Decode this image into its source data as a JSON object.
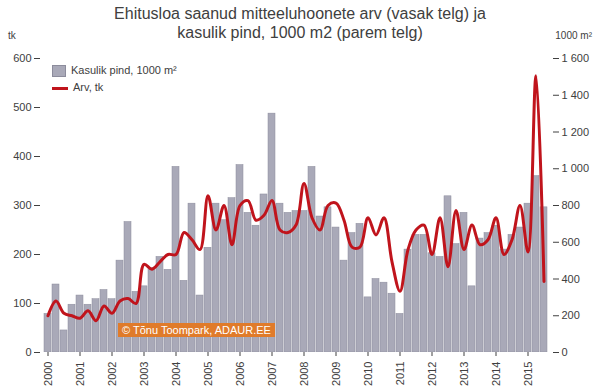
{
  "chart_data": {
    "type": "bar",
    "title": "Ehitusloa saanud mitteeluhoonete arv (vasak telg) ja kasulik pind, 1000 m2 (parem telg)",
    "categories": [
      "2000",
      null,
      null,
      null,
      "2001",
      null,
      null,
      null,
      "2002",
      null,
      null,
      null,
      "2003",
      null,
      null,
      null,
      "2004",
      null,
      null,
      null,
      "2005",
      null,
      null,
      null,
      "2006",
      null,
      null,
      null,
      "2007",
      null,
      null,
      null,
      "2008",
      null,
      null,
      null,
      "2009",
      null,
      null,
      null,
      "2010",
      null,
      null,
      null,
      "2011",
      null,
      null,
      null,
      "2012",
      null,
      null,
      null,
      "2013",
      null,
      null,
      null,
      "2014",
      null,
      null,
      null,
      "2015",
      null,
      null
    ],
    "series": [
      {
        "name": "Kasulik pind, 1000 m²",
        "type": "bar",
        "axis": "y2",
        "color": "#a9a9b8",
        "values": [
          210,
          370,
          120,
          260,
          310,
          260,
          290,
          340,
          290,
          500,
          710,
          330,
          360,
          460,
          520,
          450,
          1010,
          390,
          810,
          310,
          570,
          810,
          720,
          840,
          1020,
          760,
          690,
          860,
          1300,
          810,
          760,
          770,
          770,
          1010,
          740,
          790,
          680,
          500,
          650,
          700,
          300,
          400,
          380,
          320,
          210,
          560,
          640,
          640,
          540,
          520,
          850,
          590,
          760,
          360,
          620,
          650,
          690,
          560,
          640,
          680,
          810,
          960,
          790
        ]
      },
      {
        "name": "Arv, tk",
        "type": "line",
        "color": "#c0141c",
        "values": [
          75,
          105,
          80,
          75,
          70,
          85,
          65,
          95,
          80,
          105,
          110,
          100,
          180,
          170,
          185,
          200,
          200,
          245,
          230,
          210,
          320,
          250,
          300,
          220,
          300,
          310,
          270,
          280,
          310,
          250,
          245,
          260,
          345,
          275,
          250,
          300,
          305,
          270,
          215,
          215,
          275,
          240,
          275,
          185,
          125,
          210,
          250,
          260,
          200,
          275,
          175,
          290,
          210,
          260,
          220,
          230,
          275,
          200,
          230,
          300,
          205,
          565,
          145
        ]
      }
    ],
    "ylim": [
      0,
      600
    ],
    "yticks": [
      0,
      100,
      200,
      300,
      400,
      500,
      600
    ],
    "y_label": "tk",
    "y2lim": [
      0,
      1600
    ],
    "y2ticks": [
      0,
      200,
      400,
      600,
      800,
      {
        "value": 1000,
        "label": "1 000"
      },
      {
        "value": 1200,
        "label": "1 200"
      },
      {
        "value": 1400,
        "label": "1 400"
      },
      {
        "value": 1600,
        "label": "1 600"
      }
    ],
    "y2_label": "1000 m²",
    "annotations": [
      "© Tõnu Toompark, ADAUR.EE"
    ],
    "legend": "top-left",
    "grid": false
  }
}
